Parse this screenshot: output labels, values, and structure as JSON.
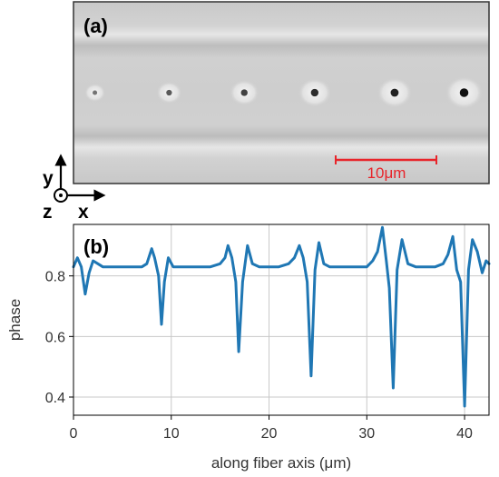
{
  "panel_a": {
    "label": "(a)",
    "scale_bar_text": "10μm",
    "scale_bar_length_um": 10,
    "scale_bar_color": "#e8242a"
  },
  "axes_indicator": {
    "y_label": "y",
    "z_label": "z",
    "x_label": "x"
  },
  "chart_data": {
    "type": "line",
    "panel_label": "(b)",
    "xlabel": "along fiber axis (μm)",
    "ylabel": "phase",
    "xlim": [
      0,
      42.5
    ],
    "ylim": [
      0.34,
      0.97
    ],
    "grid": true,
    "line_color": "#1f77b4",
    "x_ticks": [
      "0",
      "10",
      "20",
      "30",
      "40"
    ],
    "y_ticks": [
      "0.4",
      "0.6",
      "0.8"
    ],
    "x": [
      0,
      0.4,
      0.8,
      1.2,
      1.6,
      2.0,
      2.5,
      3,
      4,
      5,
      6,
      7,
      7.5,
      8,
      8.3,
      8.7,
      9.0,
      9.3,
      9.7,
      10.2,
      11,
      12,
      13,
      14,
      15,
      15.5,
      15.8,
      16.2,
      16.6,
      16.9,
      17.3,
      17.8,
      18.3,
      19,
      20,
      21,
      22,
      22.6,
      23.1,
      23.5,
      23.9,
      24.3,
      24.7,
      25.1,
      25.6,
      26.2,
      27,
      28,
      29,
      30,
      30.6,
      31.1,
      31.6,
      32.0,
      32.3,
      32.7,
      33.1,
      33.6,
      34.2,
      35,
      36,
      37,
      37.8,
      38.3,
      38.8,
      39.2,
      39.6,
      40.0,
      40.4,
      40.8,
      41.3,
      41.8,
      42.2,
      42.5
    ],
    "y": [
      0.83,
      0.86,
      0.83,
      0.74,
      0.81,
      0.85,
      0.84,
      0.83,
      0.83,
      0.83,
      0.83,
      0.83,
      0.84,
      0.89,
      0.86,
      0.8,
      0.64,
      0.78,
      0.86,
      0.83,
      0.83,
      0.83,
      0.83,
      0.83,
      0.84,
      0.86,
      0.9,
      0.86,
      0.78,
      0.55,
      0.78,
      0.9,
      0.84,
      0.83,
      0.83,
      0.83,
      0.84,
      0.86,
      0.9,
      0.86,
      0.78,
      0.47,
      0.82,
      0.91,
      0.84,
      0.83,
      0.83,
      0.83,
      0.83,
      0.83,
      0.85,
      0.88,
      0.96,
      0.85,
      0.76,
      0.43,
      0.82,
      0.92,
      0.84,
      0.83,
      0.83,
      0.83,
      0.84,
      0.87,
      0.93,
      0.82,
      0.78,
      0.37,
      0.82,
      0.92,
      0.88,
      0.81,
      0.85,
      0.84
    ]
  }
}
